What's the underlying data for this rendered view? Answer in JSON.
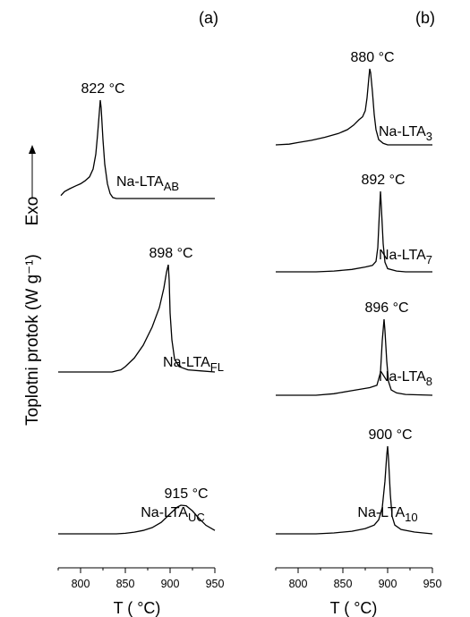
{
  "figure": {
    "ylabel": "Toplotni protok (W g⁻¹)",
    "exo_label": "Exo",
    "line_color": "#000000"
  },
  "chart_data": [
    {
      "type": "line",
      "panel_label": "(a)",
      "xlabel": "T ( °C)",
      "xlim": [
        775,
        950
      ],
      "x_ticks": [
        800,
        850,
        900,
        950
      ],
      "ylabel": "",
      "series": [
        {
          "label": "Na-LTA",
          "label_sub": "AB",
          "peak_label": "822 °C",
          "peak_x": 822,
          "points": [
            [
              778,
              0.03
            ],
            [
              782,
              0.07
            ],
            [
              788,
              0.1
            ],
            [
              795,
              0.13
            ],
            [
              800,
              0.15
            ],
            [
              805,
              0.18
            ],
            [
              810,
              0.22
            ],
            [
              814,
              0.3
            ],
            [
              817,
              0.45
            ],
            [
              819,
              0.65
            ],
            [
              821,
              0.88
            ],
            [
              822,
              1.0
            ],
            [
              823,
              0.92
            ],
            [
              825,
              0.6
            ],
            [
              827,
              0.35
            ],
            [
              830,
              0.15
            ],
            [
              833,
              0.05
            ],
            [
              836,
              0.01
            ],
            [
              840,
              0
            ],
            [
              950,
              0
            ]
          ]
        },
        {
          "label": "Na-LTA",
          "label_sub": "FL",
          "peak_label": "898 °C",
          "peak_x": 898,
          "points": [
            [
              775,
              0
            ],
            [
              835,
              0
            ],
            [
              840,
              0.01
            ],
            [
              845,
              0.02
            ],
            [
              850,
              0.05
            ],
            [
              860,
              0.13
            ],
            [
              870,
              0.25
            ],
            [
              880,
              0.42
            ],
            [
              888,
              0.6
            ],
            [
              893,
              0.78
            ],
            [
              896,
              0.93
            ],
            [
              898,
              1.0
            ],
            [
              899,
              0.85
            ],
            [
              900,
              0.55
            ],
            [
              902,
              0.3
            ],
            [
              905,
              0.12
            ],
            [
              910,
              0.05
            ],
            [
              920,
              0.02
            ],
            [
              935,
              0.01
            ],
            [
              950,
              0
            ]
          ]
        },
        {
          "label": "Na-LTA",
          "label_sub": "UC",
          "peak_label": "915 °C",
          "peak_x": 915,
          "points": [
            [
              775,
              0
            ],
            [
              840,
              0
            ],
            [
              850,
              0.02
            ],
            [
              860,
              0.06
            ],
            [
              870,
              0.12
            ],
            [
              880,
              0.22
            ],
            [
              890,
              0.4
            ],
            [
              900,
              0.7
            ],
            [
              908,
              0.93
            ],
            [
              912,
              1.0
            ],
            [
              918,
              0.98
            ],
            [
              925,
              0.8
            ],
            [
              932,
              0.55
            ],
            [
              940,
              0.3
            ],
            [
              950,
              0.12
            ]
          ]
        }
      ]
    },
    {
      "type": "line",
      "panel_label": "(b)",
      "xlabel": "T ( °C)",
      "xlim": [
        775,
        950
      ],
      "x_ticks": [
        800,
        850,
        900,
        950
      ],
      "ylabel": "",
      "series": [
        {
          "label": "Na-LTA",
          "label_sub": "3",
          "peak_label": "880 °C",
          "peak_x": 880,
          "points": [
            [
              775,
              0
            ],
            [
              790,
              0.01
            ],
            [
              800,
              0.03
            ],
            [
              815,
              0.06
            ],
            [
              830,
              0.1
            ],
            [
              845,
              0.15
            ],
            [
              855,
              0.2
            ],
            [
              862,
              0.26
            ],
            [
              868,
              0.33
            ],
            [
              872,
              0.37
            ],
            [
              875,
              0.45
            ],
            [
              877,
              0.62
            ],
            [
              879,
              0.88
            ],
            [
              880,
              1.0
            ],
            [
              881,
              0.95
            ],
            [
              883,
              0.7
            ],
            [
              885,
              0.4
            ],
            [
              887,
              0.2
            ],
            [
              890,
              0.07
            ],
            [
              895,
              0.02
            ],
            [
              900,
              0
            ],
            [
              950,
              0
            ]
          ]
        },
        {
          "label": "Na-LTA",
          "label_sub": "7",
          "peak_label": "892 °C",
          "peak_x": 892,
          "points": [
            [
              775,
              0
            ],
            [
              820,
              0
            ],
            [
              840,
              0.01
            ],
            [
              860,
              0.03
            ],
            [
              875,
              0.06
            ],
            [
              883,
              0.08
            ],
            [
              887,
              0.13
            ],
            [
              889,
              0.3
            ],
            [
              891,
              0.78
            ],
            [
              892,
              1.0
            ],
            [
              893,
              0.8
            ],
            [
              895,
              0.35
            ],
            [
              897,
              0.12
            ],
            [
              900,
              0.04
            ],
            [
              910,
              0.01
            ],
            [
              920,
              0
            ],
            [
              950,
              0
            ]
          ]
        },
        {
          "label": "Na-LTA",
          "label_sub": "8",
          "peak_label": "896 °C",
          "peak_x": 896,
          "points": [
            [
              775,
              0
            ],
            [
              820,
              0
            ],
            [
              840,
              0.02
            ],
            [
              860,
              0.06
            ],
            [
              880,
              0.1
            ],
            [
              888,
              0.13
            ],
            [
              892,
              0.3
            ],
            [
              894,
              0.72
            ],
            [
              896,
              1.0
            ],
            [
              897,
              0.85
            ],
            [
              899,
              0.45
            ],
            [
              901,
              0.18
            ],
            [
              904,
              0.07
            ],
            [
              910,
              0.03
            ],
            [
              920,
              0.01
            ],
            [
              950,
              0
            ]
          ]
        },
        {
          "label": "Na-LTA",
          "label_sub": "10",
          "peak_label": "900 °C",
          "peak_x": 900,
          "points": [
            [
              775,
              0
            ],
            [
              820,
              0
            ],
            [
              840,
              0.01
            ],
            [
              860,
              0.03
            ],
            [
              875,
              0.06
            ],
            [
              885,
              0.1
            ],
            [
              890,
              0.16
            ],
            [
              894,
              0.3
            ],
            [
              897,
              0.6
            ],
            [
              899,
              0.9
            ],
            [
              900,
              1.0
            ],
            [
              901,
              0.85
            ],
            [
              903,
              0.45
            ],
            [
              905,
              0.2
            ],
            [
              908,
              0.1
            ],
            [
              915,
              0.05
            ],
            [
              930,
              0.02
            ],
            [
              950,
              0
            ]
          ]
        }
      ]
    }
  ]
}
